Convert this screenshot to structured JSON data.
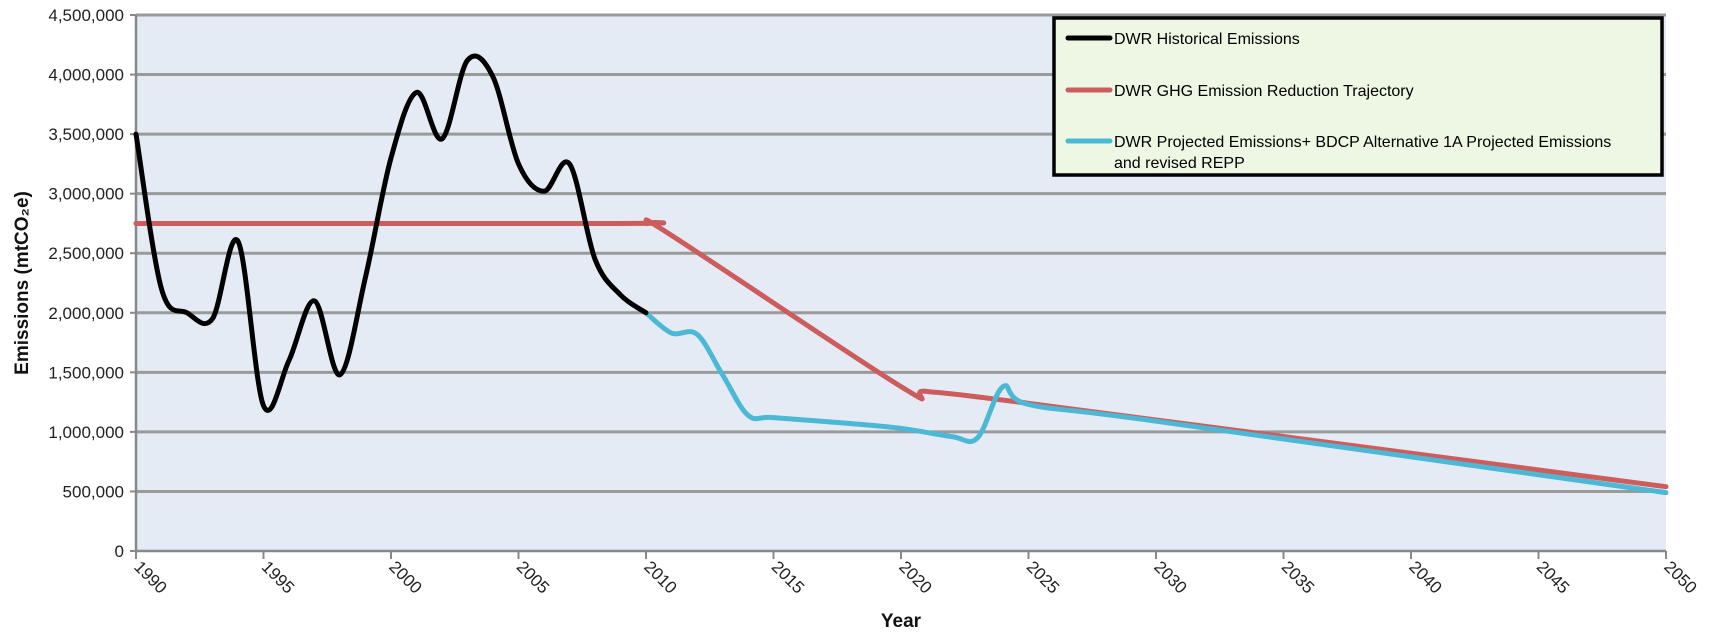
{
  "chart_data": {
    "type": "line",
    "title": "",
    "xlabel": "Year",
    "ylabel": "Emissions (mtCO₂e)",
    "xlim": [
      1990,
      2050
    ],
    "ylim": [
      0,
      4500000
    ],
    "x_ticks": [
      "1990",
      "1995",
      "2000",
      "2005",
      "2010",
      "2015",
      "2020",
      "2025",
      "2030",
      "2035",
      "2040",
      "2045",
      "2050"
    ],
    "y_ticks": [
      "0",
      "500,000",
      "1,000,000",
      "1,500,000",
      "2,000,000",
      "2,500,000",
      "3,000,000",
      "3,500,000",
      "4,000,000",
      "4,500,000"
    ],
    "grid": "horizontal",
    "legend_position": "top-right",
    "colors": {
      "plot_background": "#e4ebf5",
      "legend_background": "#eef6e4",
      "grid": "#9a9a9a"
    },
    "series": [
      {
        "name": "DWR Historical Emissions",
        "color": "#000000",
        "x": [
          1990,
          1991,
          1992,
          1993,
          1994,
          1995,
          1996,
          1997,
          1998,
          1999,
          2000,
          2001,
          2002,
          2003,
          2004,
          2005,
          2006,
          2007,
          2008,
          2009,
          2010
        ],
        "y": [
          3500000,
          2200000,
          2000000,
          1950000,
          2600000,
          1220000,
          1600000,
          2100000,
          1480000,
          2300000,
          3300000,
          3850000,
          3460000,
          4120000,
          3980000,
          3250000,
          3020000,
          3250000,
          2450000,
          2150000,
          2000000
        ]
      },
      {
        "name": "DWR GHG Emission Reduction Trajectory",
        "color": "#cd5c5c",
        "x": [
          1990,
          2009,
          2010,
          2011,
          2020,
          2021,
          2025,
          2050
        ],
        "y": [
          2750000,
          2750000,
          2750000,
          2650000,
          1380000,
          1340000,
          1240000,
          540000
        ]
      },
      {
        "name": "DWR Projected Emissions+ BDCP Alternative 1A Projected Emissions and revised REPP",
        "color": "#4bb8d6",
        "x": [
          2010,
          2011,
          2012,
          2013,
          2014,
          2015,
          2018,
          2020,
          2022,
          2023,
          2024,
          2025,
          2030,
          2050
        ],
        "y": [
          2000000,
          1830000,
          1820000,
          1480000,
          1140000,
          1120000,
          1070000,
          1030000,
          960000,
          950000,
          1380000,
          1230000,
          1090000,
          490000
        ]
      }
    ]
  }
}
